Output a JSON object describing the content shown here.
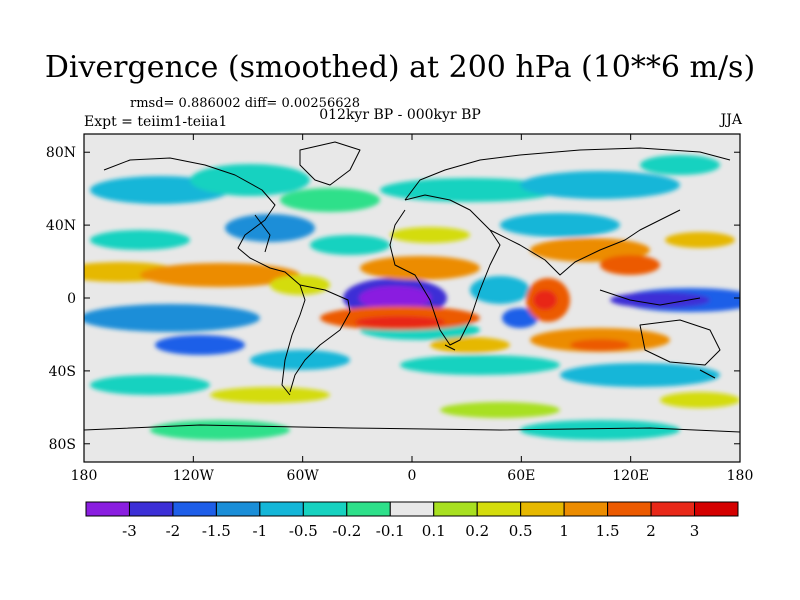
{
  "title": "Divergence (smoothed) at 200 hPa (10**6 m/s)",
  "stats": "rmsd= 0.886002 diff= 0.00256628",
  "experiment": "Expt = teiim1-teiia1",
  "period": "012kyr BP - 000kyr BP",
  "season": "JJA",
  "map": {
    "lat_ticks": [
      "80N",
      "40N",
      "0",
      "40S",
      "80S"
    ],
    "lon_ticks": [
      "180",
      "120W",
      "60W",
      "0",
      "60E",
      "120E",
      "180"
    ]
  },
  "colorbar": {
    "labels": [
      "-3",
      "-2",
      "-1.5",
      "-1",
      "-0.5",
      "-0.2",
      "-0.1",
      "0.1",
      "0.2",
      "0.5",
      "1",
      "1.5",
      "2",
      "3"
    ],
    "colors": [
      "#8a1ee0",
      "#3c2fd6",
      "#1e5ee8",
      "#1a8ed8",
      "#14b6d8",
      "#17d2c0",
      "#2ee08a",
      "#e8e8e8",
      "#a8e020",
      "#d4dc0c",
      "#e6b800",
      "#ec8c00",
      "#ec5a00",
      "#e82818",
      "#d40000"
    ]
  }
}
